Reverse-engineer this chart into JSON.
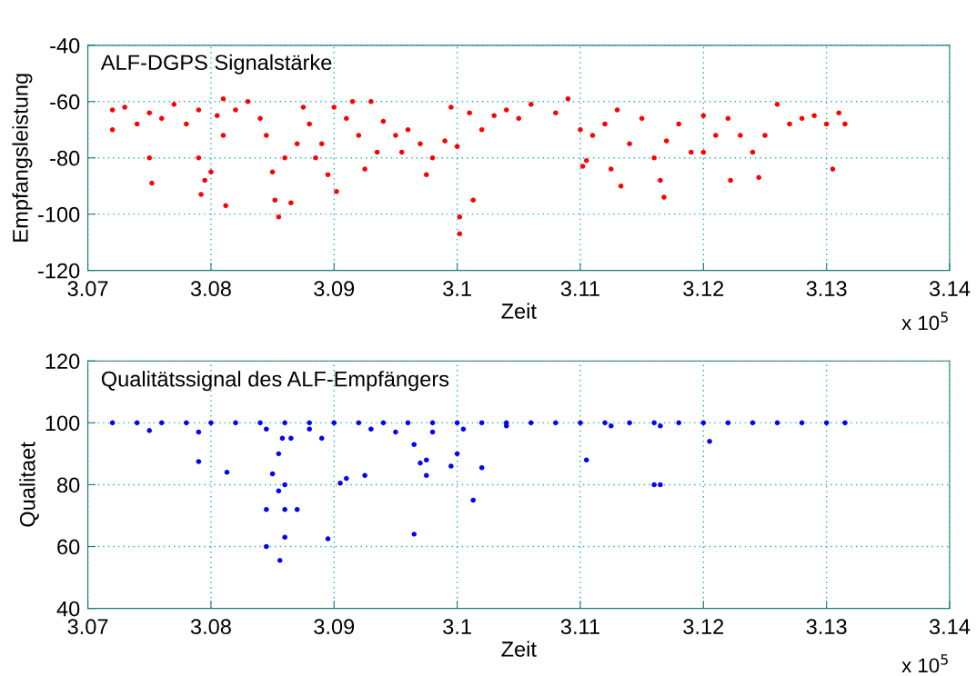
{
  "chart_data": [
    {
      "type": "scatter",
      "title": "ALF-DGPS Signalstärke",
      "xlabel": "Zeit",
      "ylabel": "Empfangsleistung",
      "annotations": [
        "x 10$^{5}$"
      ],
      "marker": "circle",
      "grid": true,
      "xlim": [
        3.07,
        3.14
      ],
      "xticks": [
        3.07,
        3.08,
        3.09,
        3.1,
        3.11,
        3.12,
        3.13,
        3.14
      ],
      "ylim": [
        -120,
        -40
      ],
      "yticks": [
        -120,
        -100,
        -80,
        -60,
        -40
      ],
      "series": [
        {
          "color": "#ff0000",
          "x": [
            3.072,
            3.072,
            3.073,
            3.074,
            3.075,
            3.075,
            3.0752,
            3.076,
            3.077,
            3.078,
            3.079,
            3.079,
            3.0792,
            3.0795,
            3.08,
            3.0805,
            3.081,
            3.081,
            3.0812,
            3.082,
            3.083,
            3.084,
            3.0845,
            3.085,
            3.0852,
            3.0855,
            3.086,
            3.0865,
            3.087,
            3.0875,
            3.088,
            3.0885,
            3.089,
            3.0895,
            3.09,
            3.0902,
            3.091,
            3.0915,
            3.092,
            3.0925,
            3.093,
            3.0935,
            3.094,
            3.095,
            3.0955,
            3.096,
            3.097,
            3.0975,
            3.098,
            3.099,
            3.0995,
            3.1,
            3.1002,
            3.1002,
            3.101,
            3.1013,
            3.102,
            3.103,
            3.104,
            3.105,
            3.106,
            3.108,
            3.109,
            3.11,
            3.1102,
            3.1105,
            3.111,
            3.112,
            3.1125,
            3.113,
            3.1133,
            3.114,
            3.115,
            3.116,
            3.1165,
            3.1168,
            3.117,
            3.118,
            3.119,
            3.12,
            3.12,
            3.121,
            3.122,
            3.1222,
            3.123,
            3.124,
            3.1245,
            3.125,
            3.126,
            3.127,
            3.128,
            3.129,
            3.13,
            3.1305,
            3.131,
            3.1315
          ],
          "values": [
            -63,
            -70,
            -62,
            -68,
            -64,
            -80,
            -89,
            -66,
            -61,
            -68,
            -63,
            -80,
            -93,
            -88,
            -85,
            -65,
            -59,
            -72,
            -97,
            -63,
            -60,
            -66,
            -72,
            -85,
            -95,
            -101,
            -80,
            -96,
            -75,
            -62,
            -68,
            -80,
            -75,
            -86,
            -62,
            -92,
            -66,
            -60,
            -72,
            -84,
            -60,
            -78,
            -67,
            -72,
            -78,
            -70,
            -75,
            -86,
            -80,
            -74,
            -62,
            -76,
            -101,
            -107,
            -64,
            -95,
            -70,
            -65,
            -63,
            -66,
            -61,
            -64,
            -59,
            -70,
            -83,
            -81,
            -72,
            -68,
            -84,
            -63,
            -90,
            -75,
            -66,
            -80,
            -88,
            -94,
            -74,
            -68,
            -78,
            -65,
            -78,
            -72,
            -66,
            -88,
            -72,
            -78,
            -87,
            -72,
            -61,
            -68,
            -66,
            -65,
            -68,
            -84,
            -64,
            -68
          ]
        }
      ]
    },
    {
      "type": "scatter",
      "title": "Qualitätssignal des ALF-Empfängers",
      "xlabel": "Zeit",
      "ylabel": "Qualitaet",
      "annotations": [
        "x 10$^{5}$"
      ],
      "marker": "circle",
      "grid": true,
      "xlim": [
        3.07,
        3.14
      ],
      "xticks": [
        3.07,
        3.08,
        3.09,
        3.1,
        3.11,
        3.12,
        3.13,
        3.14
      ],
      "ylim": [
        40,
        120
      ],
      "yticks": [
        40,
        60,
        80,
        100,
        120
      ],
      "series": [
        {
          "color": "#0000ff",
          "x": [
            3.072,
            3.074,
            3.076,
            3.078,
            3.08,
            3.082,
            3.084,
            3.086,
            3.088,
            3.09,
            3.092,
            3.094,
            3.096,
            3.098,
            3.1,
            3.102,
            3.104,
            3.106,
            3.108,
            3.11,
            3.112,
            3.114,
            3.116,
            3.118,
            3.12,
            3.122,
            3.124,
            3.126,
            3.128,
            3.13,
            3.1315,
            3.075,
            3.079,
            3.079,
            3.0813,
            3.0845,
            3.0845,
            3.0845,
            3.085,
            3.0855,
            3.0855,
            3.0856,
            3.0858,
            3.086,
            3.086,
            3.086,
            3.0865,
            3.087,
            3.088,
            3.089,
            3.0895,
            3.0905,
            3.091,
            3.0925,
            3.093,
            3.095,
            3.0965,
            3.0965,
            3.097,
            3.0975,
            3.0975,
            3.098,
            3.0995,
            3.1,
            3.1005,
            3.1013,
            3.102,
            3.104,
            3.1105,
            3.1125,
            3.116,
            3.1165,
            3.1165,
            3.1205
          ],
          "values": [
            100,
            100,
            100,
            100,
            100,
            100,
            100,
            100,
            100,
            100,
            100,
            100,
            100,
            100,
            100,
            100,
            100,
            100,
            100,
            100,
            100,
            100,
            100,
            100,
            100,
            100,
            100,
            100,
            100,
            100,
            100,
            97.5,
            97,
            87.5,
            84,
            98,
            72,
            60,
            83.5,
            78,
            90,
            55.5,
            95,
            63,
            72,
            80,
            95,
            72,
            98,
            95,
            62.5,
            80.5,
            82,
            83,
            98,
            97,
            64,
            93,
            87,
            88,
            83,
            97,
            86,
            90,
            98,
            75,
            85.5,
            99,
            88,
            99,
            80,
            80,
            99,
            94
          ]
        }
      ]
    }
  ]
}
